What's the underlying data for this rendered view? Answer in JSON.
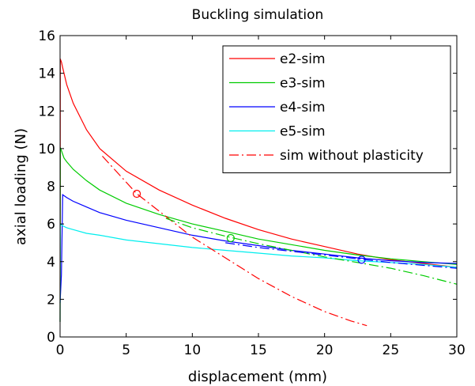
{
  "chart_data": {
    "type": "line",
    "title": "Buckling simulation",
    "xlabel": "displacement (mm)",
    "ylabel": "axial loading (N)",
    "xlim": [
      0,
      30
    ],
    "ylim": [
      0,
      16
    ],
    "xticks": [
      0,
      5,
      10,
      15,
      20,
      25,
      30
    ],
    "yticks": [
      0,
      2,
      4,
      6,
      8,
      10,
      12,
      14,
      16
    ],
    "grid": false,
    "legend_position": "top-right",
    "series": [
      {
        "name": "e2-sim",
        "color": "#ff0000",
        "style": "solid",
        "x": [
          0,
          0.02,
          0.05,
          0.1,
          0.2,
          0.3,
          0.5,
          1,
          2,
          3,
          5,
          7.5,
          10,
          12.5,
          15,
          17.5,
          20,
          22.5,
          25,
          27.5,
          30
        ],
        "y": [
          0.8,
          14.6,
          14.7,
          14.6,
          14.3,
          14.0,
          13.4,
          12.4,
          11.0,
          10.0,
          8.8,
          7.8,
          7.0,
          6.3,
          5.7,
          5.2,
          4.8,
          4.4,
          4.1,
          3.9,
          3.7
        ]
      },
      {
        "name": "e3-sim",
        "color": "#00cc00",
        "style": "solid",
        "x": [
          0,
          0.02,
          0.05,
          0.1,
          0.2,
          0.3,
          0.5,
          1,
          2,
          3,
          5,
          7.5,
          10,
          12.5,
          15,
          17.5,
          20,
          22.5,
          25,
          27.5,
          30
        ],
        "y": [
          0.8,
          9.9,
          10.0,
          9.9,
          9.7,
          9.5,
          9.3,
          8.9,
          8.3,
          7.8,
          7.1,
          6.5,
          6.0,
          5.6,
          5.2,
          4.9,
          4.6,
          4.35,
          4.15,
          4.0,
          3.85
        ]
      },
      {
        "name": "e4-sim",
        "color": "#0000ff",
        "style": "solid",
        "x": [
          0,
          0.1,
          0.2,
          0.3,
          0.5,
          1,
          2,
          3,
          5,
          7.5,
          10,
          12.5,
          15,
          17.5,
          20,
          22.5,
          25,
          27.5,
          30
        ],
        "y": [
          1.8,
          3.3,
          7.55,
          7.5,
          7.4,
          7.2,
          6.9,
          6.6,
          6.2,
          5.8,
          5.4,
          5.1,
          4.85,
          4.6,
          4.4,
          4.2,
          4.05,
          3.95,
          3.9
        ]
      },
      {
        "name": "e5-sim",
        "color": "#00eeee",
        "style": "solid",
        "x": [
          0,
          0.02,
          0.05,
          0.1,
          0.2,
          0.5,
          1,
          2,
          3,
          5,
          7.5,
          10,
          12.5,
          15,
          17.5,
          20,
          22.5,
          25,
          27.5,
          30
        ],
        "y": [
          0.8,
          6.0,
          6.0,
          5.95,
          5.9,
          5.8,
          5.7,
          5.5,
          5.4,
          5.15,
          4.95,
          4.75,
          4.6,
          4.45,
          4.3,
          4.2,
          4.05,
          3.95,
          3.85,
          3.7
        ]
      },
      {
        "name": "sim without plasticity",
        "color": "#ff0000",
        "style": "dashdot",
        "x": [
          3.2,
          5.8,
          8,
          10,
          12.5,
          15,
          17.5,
          20,
          22,
          23.2
        ],
        "y": [
          9.6,
          7.6,
          6.4,
          5.3,
          4.2,
          3.1,
          2.15,
          1.35,
          0.85,
          0.6
        ]
      },
      {
        "name": "",
        "color": "#00cc00",
        "style": "dashdot",
        "x": [
          8,
          10,
          12.5,
          15,
          17.5,
          20,
          22.5,
          25,
          27.5,
          30
        ],
        "y": [
          6.3,
          5.8,
          5.35,
          4.95,
          4.6,
          4.25,
          3.95,
          3.65,
          3.25,
          2.8
        ]
      },
      {
        "name": "",
        "color": "#0000ff",
        "style": "dashdot",
        "x": [
          12.5,
          15,
          17.5,
          20,
          22.5,
          25,
          27.5,
          30
        ],
        "y": [
          5.0,
          4.75,
          4.55,
          4.35,
          4.15,
          3.95,
          3.8,
          3.65
        ]
      }
    ],
    "markers": [
      {
        "x": 5.8,
        "y": 7.6,
        "color": "#ff0000"
      },
      {
        "x": 12.9,
        "y": 5.25,
        "color": "#00cc00"
      },
      {
        "x": 22.8,
        "y": 4.1,
        "color": "#0000ff"
      }
    ]
  }
}
